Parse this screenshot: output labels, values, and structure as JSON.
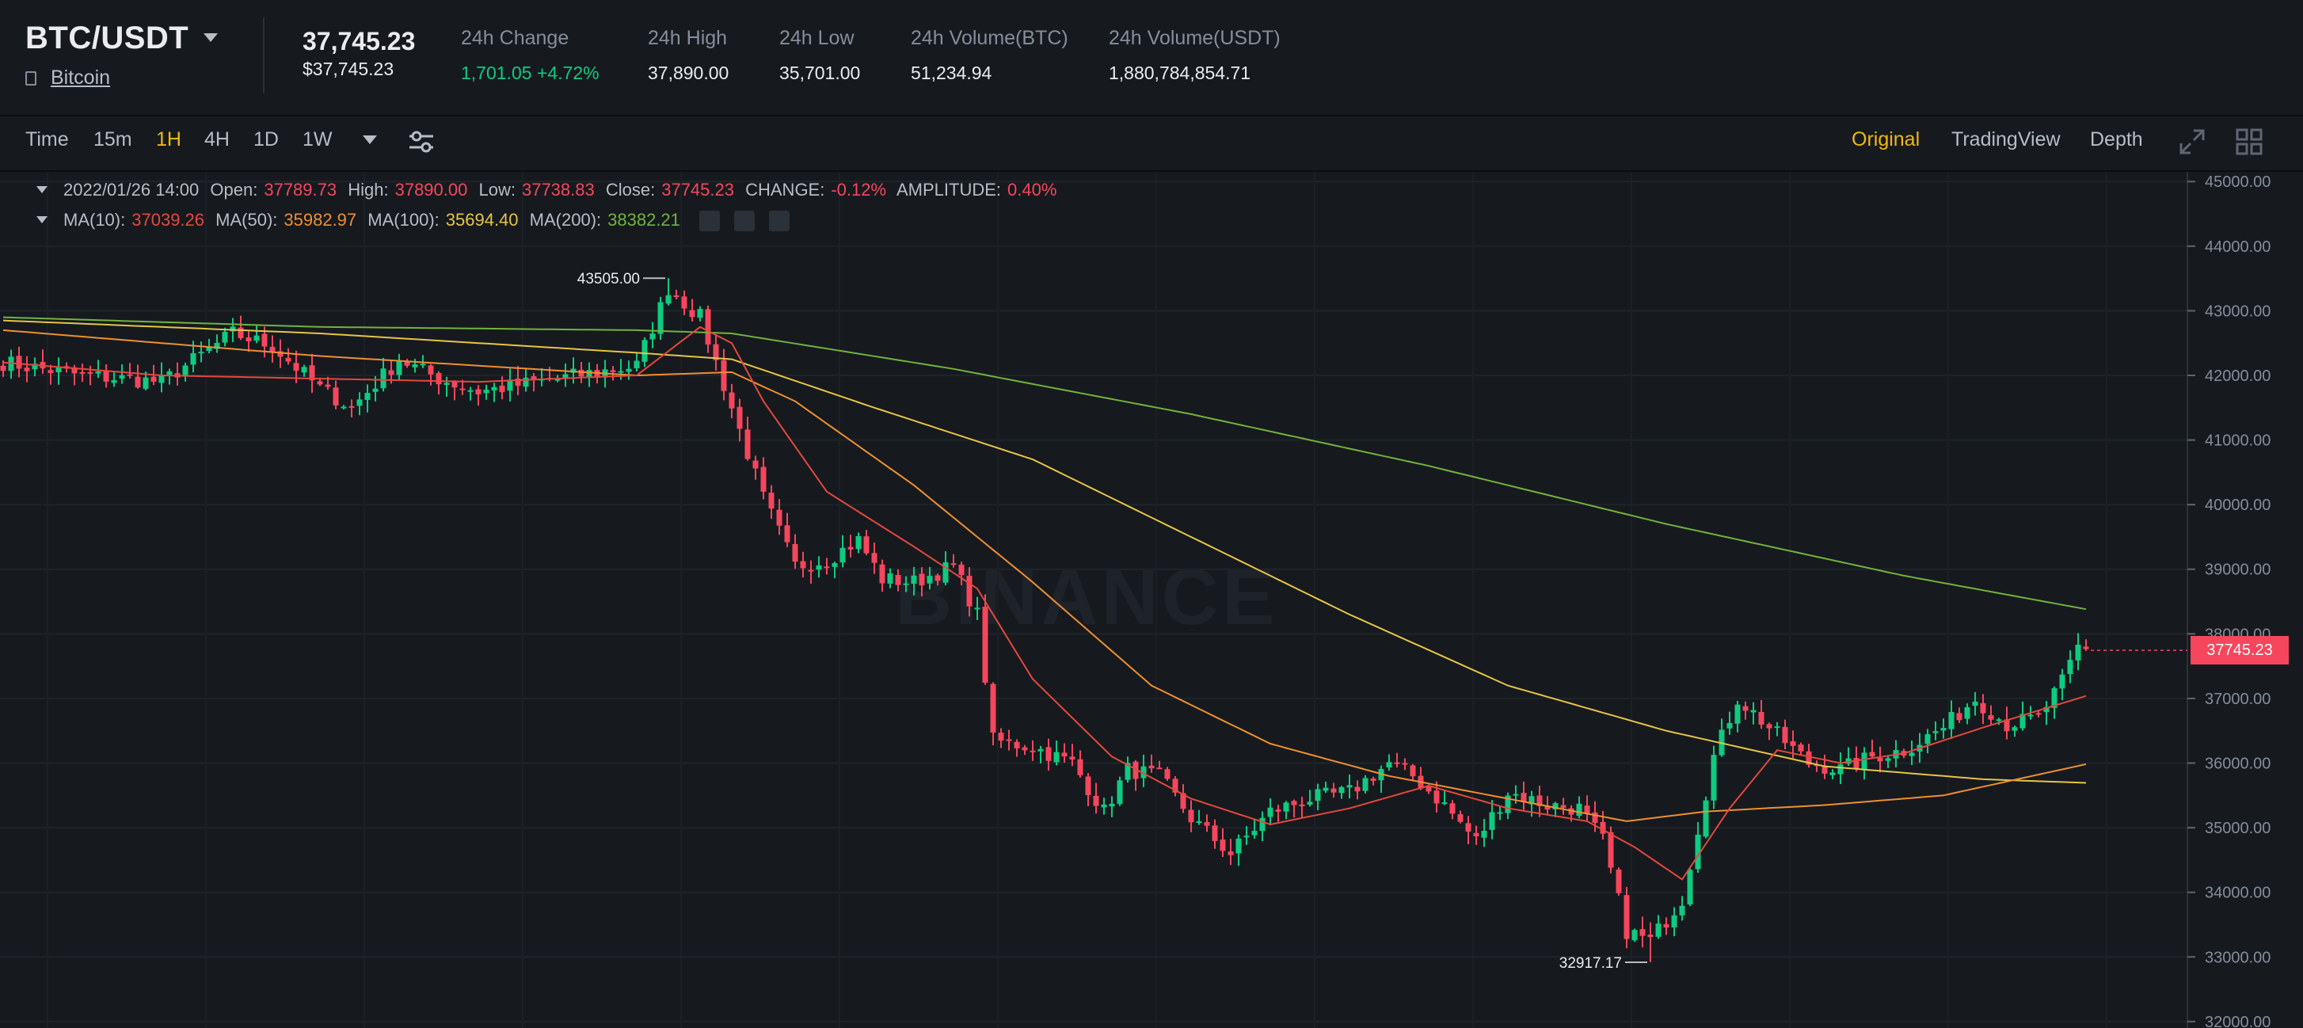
{
  "header": {
    "pair": "BTC/USDT",
    "asset_name": "Bitcoin",
    "last_price": "37,745.23",
    "last_price_usd": "$37,745.23",
    "stats": [
      {
        "label": "24h Change",
        "value": "1,701.05 +4.72%",
        "trend": "up"
      },
      {
        "label": "24h High",
        "value": "37,890.00"
      },
      {
        "label": "24h Low",
        "value": "35,701.00"
      },
      {
        "label": "24h Volume(BTC)",
        "value": "51,234.94"
      },
      {
        "label": "24h Volume(USDT)",
        "value": "1,880,784,854.71"
      }
    ]
  },
  "toolbar": {
    "timeframes": [
      "Time",
      "15m",
      "1H",
      "4H",
      "1D",
      "1W"
    ],
    "active_timeframe": "1H",
    "views": [
      "Original",
      "TradingView",
      "Depth"
    ],
    "active_view": "Original",
    "icons": [
      "chevron-down-icon",
      "settings-sliders-icon",
      "fullscreen-icon",
      "grid-layout-icon"
    ]
  },
  "legend": {
    "ohlc": {
      "date": "2022/01/26 14:00",
      "open_label": "Open:",
      "open": "37789.73",
      "high_label": "High:",
      "high": "37890.00",
      "low_label": "Low:",
      "low": "37738.83",
      "close_label": "Close:",
      "close": "37745.23",
      "change_label": "CHANGE:",
      "change": "-0.12%",
      "amplitude_label": "AMPLITUDE:",
      "amplitude": "0.40%"
    },
    "ma": [
      {
        "label": "MA(10):",
        "value": "37039.26",
        "color": "#e4483e"
      },
      {
        "label": "MA(50):",
        "value": "35982.97",
        "color": "#ef8f32"
      },
      {
        "label": "MA(100):",
        "value": "35694.40",
        "color": "#e7c348"
      },
      {
        "label": "MA(200):",
        "value": "38382.21",
        "color": "#72b33e"
      }
    ]
  },
  "watermark": "BINANCE",
  "colors": {
    "up": "#0ecb81",
    "down": "#f6465d",
    "accent": "#f0b90b",
    "background": "#161a1e"
  },
  "chart_data": {
    "type": "candlestick",
    "y_ticks": [
      "45000.00",
      "44000.00",
      "43000.00",
      "42000.00",
      "41000.00",
      "40000.00",
      "39000.00",
      "38000.00",
      "37000.00",
      "36000.00",
      "35000.00",
      "34000.00",
      "33000.00",
      "32000.00"
    ],
    "ylim": [
      31900,
      45150
    ],
    "current_price": "37745.23",
    "annotations": [
      {
        "text": "43505.00",
        "value": 43505,
        "candle": 84
      },
      {
        "text": "32917.17",
        "value": 32917.17,
        "candle": 208
      }
    ],
    "close_keyframes": [
      [
        0,
        42200
      ],
      [
        10,
        42000
      ],
      [
        20,
        41900
      ],
      [
        29,
        42650
      ],
      [
        34,
        42450
      ],
      [
        40,
        41800
      ],
      [
        44,
        41500
      ],
      [
        50,
        42250
      ],
      [
        55,
        41950
      ],
      [
        60,
        41750
      ],
      [
        65,
        41850
      ],
      [
        70,
        41950
      ],
      [
        75,
        42050
      ],
      [
        80,
        42150
      ],
      [
        84,
        43350
      ],
      [
        88,
        42900
      ],
      [
        92,
        41500
      ],
      [
        96,
        40100
      ],
      [
        100,
        39050
      ],
      [
        104,
        39150
      ],
      [
        108,
        39450
      ],
      [
        111,
        38850
      ],
      [
        115,
        38800
      ],
      [
        120,
        39050
      ],
      [
        123,
        38300
      ],
      [
        125,
        36350
      ],
      [
        130,
        36250
      ],
      [
        135,
        36000
      ],
      [
        139,
        35250
      ],
      [
        142,
        35900
      ],
      [
        146,
        35800
      ],
      [
        150,
        35150
      ],
      [
        155,
        34600
      ],
      [
        160,
        35250
      ],
      [
        165,
        35450
      ],
      [
        170,
        35550
      ],
      [
        175,
        36000
      ],
      [
        178,
        35800
      ],
      [
        182,
        35350
      ],
      [
        186,
        34800
      ],
      [
        190,
        35550
      ],
      [
        195,
        35350
      ],
      [
        199,
        35300
      ],
      [
        202,
        34800
      ],
      [
        205,
        33400
      ],
      [
        208,
        33250
      ],
      [
        212,
        33900
      ],
      [
        216,
        36100
      ],
      [
        219,
        37000
      ],
      [
        223,
        36550
      ],
      [
        228,
        36000
      ],
      [
        232,
        35900
      ],
      [
        236,
        36100
      ],
      [
        240,
        36200
      ],
      [
        245,
        36550
      ],
      [
        249,
        37000
      ],
      [
        253,
        36600
      ],
      [
        257,
        36700
      ],
      [
        260,
        37250
      ],
      [
        262,
        37790
      ],
      [
        263,
        37745
      ]
    ],
    "ma10_keyframes": [
      [
        0,
        42200
      ],
      [
        20,
        42000
      ],
      [
        40,
        41950
      ],
      [
        60,
        41900
      ],
      [
        80,
        42000
      ],
      [
        88,
        42750
      ],
      [
        92,
        42500
      ],
      [
        96,
        41600
      ],
      [
        104,
        40200
      ],
      [
        115,
        39350
      ],
      [
        123,
        38700
      ],
      [
        130,
        37300
      ],
      [
        140,
        36100
      ],
      [
        150,
        35450
      ],
      [
        160,
        35050
      ],
      [
        170,
        35300
      ],
      [
        180,
        35650
      ],
      [
        190,
        35300
      ],
      [
        200,
        35100
      ],
      [
        206,
        34700
      ],
      [
        212,
        34200
      ],
      [
        218,
        35300
      ],
      [
        224,
        36200
      ],
      [
        232,
        36000
      ],
      [
        240,
        36150
      ],
      [
        250,
        36550
      ],
      [
        263,
        37039
      ]
    ],
    "ma50_keyframes": [
      [
        0,
        42700
      ],
      [
        40,
        42300
      ],
      [
        80,
        42000
      ],
      [
        92,
        42050
      ],
      [
        100,
        41600
      ],
      [
        115,
        40300
      ],
      [
        130,
        38800
      ],
      [
        145,
        37200
      ],
      [
        160,
        36300
      ],
      [
        175,
        35800
      ],
      [
        190,
        35450
      ],
      [
        205,
        35100
      ],
      [
        215,
        35250
      ],
      [
        230,
        35350
      ],
      [
        245,
        35500
      ],
      [
        263,
        35983
      ]
    ],
    "ma100_keyframes": [
      [
        0,
        42850
      ],
      [
        40,
        42650
      ],
      [
        80,
        42350
      ],
      [
        92,
        42250
      ],
      [
        110,
        41500
      ],
      [
        130,
        40700
      ],
      [
        150,
        39500
      ],
      [
        170,
        38300
      ],
      [
        190,
        37200
      ],
      [
        210,
        36500
      ],
      [
        230,
        35950
      ],
      [
        250,
        35750
      ],
      [
        263,
        35694
      ]
    ],
    "ma200_keyframes": [
      [
        0,
        42900
      ],
      [
        40,
        42750
      ],
      [
        80,
        42700
      ],
      [
        92,
        42650
      ],
      [
        120,
        42100
      ],
      [
        150,
        41400
      ],
      [
        180,
        40600
      ],
      [
        210,
        39700
      ],
      [
        240,
        38900
      ],
      [
        263,
        38382
      ]
    ]
  }
}
